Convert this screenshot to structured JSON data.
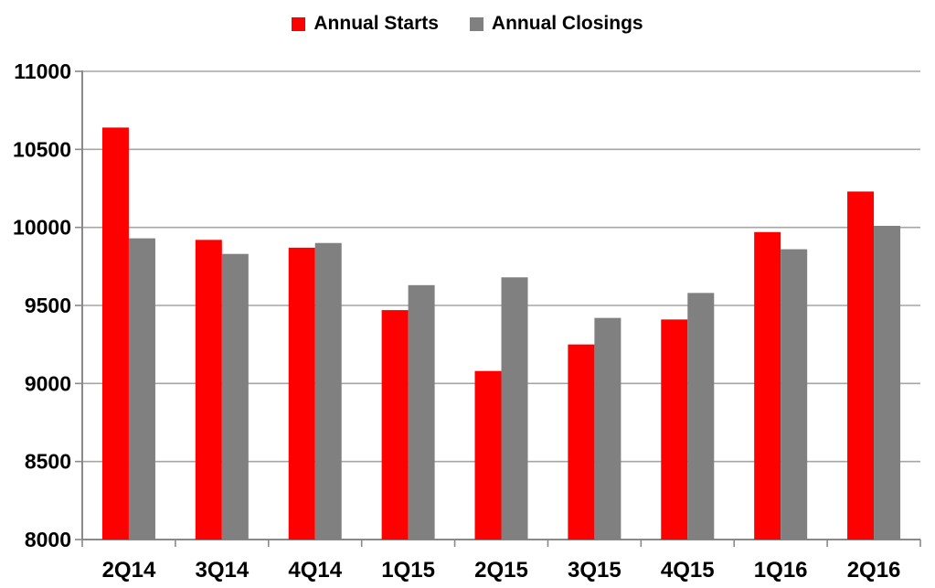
{
  "legend": {
    "items": [
      {
        "label": "Annual Starts",
        "color": "#FF0000"
      },
      {
        "label": "Annual Closings",
        "color": "#808080"
      }
    ]
  },
  "chart_data": {
    "type": "bar",
    "title": "",
    "xlabel": "",
    "ylabel": "",
    "categories": [
      "2Q14",
      "3Q14",
      "4Q14",
      "1Q15",
      "2Q15",
      "3Q15",
      "4Q15",
      "1Q16",
      "2Q16"
    ],
    "series": [
      {
        "name": "Annual Starts",
        "color": "#FF0000",
        "values": [
          10640,
          9920,
          9870,
          9470,
          9080,
          9250,
          9410,
          9970,
          10230
        ]
      },
      {
        "name": "Annual Closings",
        "color": "#808080",
        "values": [
          9930,
          9830,
          9900,
          9630,
          9680,
          9420,
          9580,
          9860,
          10010
        ]
      }
    ],
    "ylim": [
      8000,
      11000
    ],
    "ytick_step": 500,
    "yticks": [
      8000,
      8500,
      9000,
      9500,
      10000,
      10500,
      11000
    ],
    "grid": true,
    "legend_position": "top-center",
    "gridline_color": "#A6A6A6",
    "axis_color": "#898989",
    "text_color": "#000000"
  }
}
